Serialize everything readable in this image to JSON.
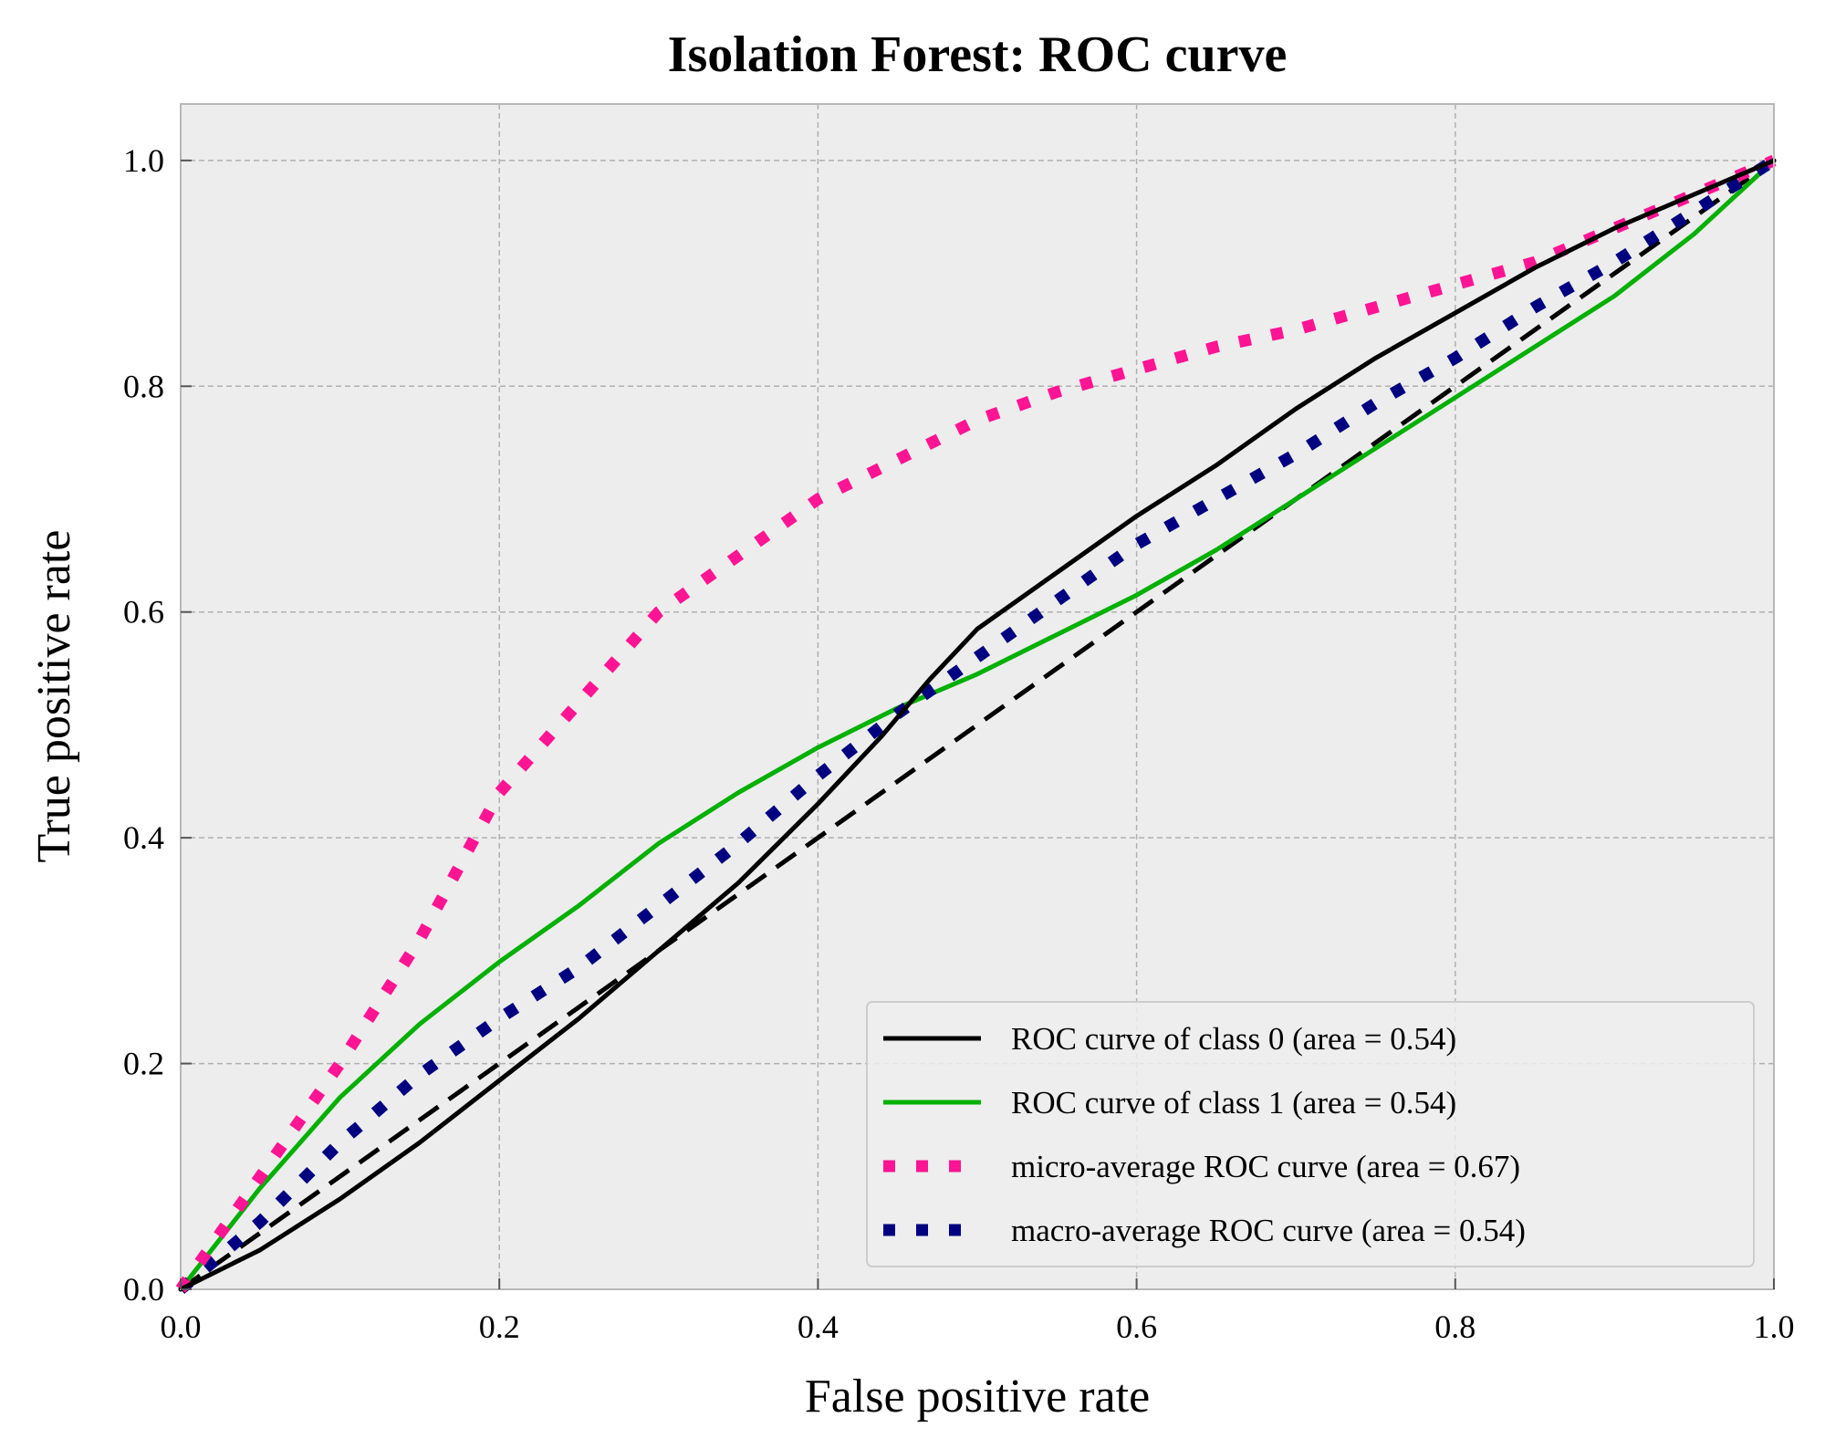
{
  "chart_data": {
    "type": "line",
    "title": "Isolation Forest: ROC curve",
    "xlabel": "False positive rate",
    "ylabel": "True positive rate",
    "xlim": [
      0.0,
      1.0
    ],
    "ylim": [
      0.0,
      1.05
    ],
    "xticks": [
      "0.0",
      "0.2",
      "0.4",
      "0.6",
      "0.8",
      "1.0"
    ],
    "yticks": [
      "0.0",
      "0.2",
      "0.4",
      "0.6",
      "0.8",
      "1.0"
    ],
    "grid": true,
    "legend_position": "lower right",
    "background": "#ededed",
    "series": [
      {
        "name": "ROC curve of class 0 (area = 0.54)",
        "color": "#000000",
        "style": "solid",
        "points": [
          [
            0,
            0
          ],
          [
            0.05,
            0.035
          ],
          [
            0.1,
            0.08
          ],
          [
            0.15,
            0.13
          ],
          [
            0.2,
            0.185
          ],
          [
            0.25,
            0.24
          ],
          [
            0.3,
            0.3
          ],
          [
            0.35,
            0.36
          ],
          [
            0.4,
            0.43
          ],
          [
            0.44,
            0.49
          ],
          [
            0.47,
            0.54
          ],
          [
            0.5,
            0.585
          ],
          [
            0.55,
            0.635
          ],
          [
            0.6,
            0.685
          ],
          [
            0.65,
            0.73
          ],
          [
            0.7,
            0.78
          ],
          [
            0.75,
            0.825
          ],
          [
            0.8,
            0.865
          ],
          [
            0.85,
            0.905
          ],
          [
            0.9,
            0.94
          ],
          [
            0.95,
            0.97
          ],
          [
            1.0,
            1.0
          ]
        ]
      },
      {
        "name": "ROC curve of class 1 (area = 0.54)",
        "color": "#00b000",
        "style": "solid",
        "points": [
          [
            0,
            0
          ],
          [
            0.05,
            0.09
          ],
          [
            0.1,
            0.17
          ],
          [
            0.15,
            0.235
          ],
          [
            0.2,
            0.29
          ],
          [
            0.25,
            0.34
          ],
          [
            0.3,
            0.395
          ],
          [
            0.35,
            0.44
          ],
          [
            0.4,
            0.48
          ],
          [
            0.45,
            0.515
          ],
          [
            0.5,
            0.545
          ],
          [
            0.55,
            0.58
          ],
          [
            0.6,
            0.615
          ],
          [
            0.65,
            0.655
          ],
          [
            0.7,
            0.7
          ],
          [
            0.75,
            0.745
          ],
          [
            0.8,
            0.79
          ],
          [
            0.85,
            0.835
          ],
          [
            0.9,
            0.88
          ],
          [
            0.95,
            0.935
          ],
          [
            1.0,
            1.0
          ]
        ]
      },
      {
        "name": "micro-average ROC curve (area = 0.67)",
        "color": "#ff1493",
        "style": "dotted",
        "points": [
          [
            0,
            0
          ],
          [
            0.05,
            0.1
          ],
          [
            0.1,
            0.2
          ],
          [
            0.15,
            0.31
          ],
          [
            0.2,
            0.44
          ],
          [
            0.25,
            0.52
          ],
          [
            0.3,
            0.6
          ],
          [
            0.35,
            0.65
          ],
          [
            0.4,
            0.7
          ],
          [
            0.45,
            0.735
          ],
          [
            0.5,
            0.77
          ],
          [
            0.55,
            0.795
          ],
          [
            0.6,
            0.815
          ],
          [
            0.65,
            0.835
          ],
          [
            0.7,
            0.85
          ],
          [
            0.75,
            0.87
          ],
          [
            0.8,
            0.89
          ],
          [
            0.85,
            0.91
          ],
          [
            0.9,
            0.94
          ],
          [
            0.95,
            0.97
          ],
          [
            1.0,
            1.0
          ]
        ]
      },
      {
        "name": "macro-average ROC curve (area = 0.54)",
        "color": "#000080",
        "style": "dotted",
        "points": [
          [
            0,
            0
          ],
          [
            0.05,
            0.06
          ],
          [
            0.1,
            0.13
          ],
          [
            0.15,
            0.19
          ],
          [
            0.2,
            0.24
          ],
          [
            0.25,
            0.285
          ],
          [
            0.3,
            0.34
          ],
          [
            0.35,
            0.395
          ],
          [
            0.4,
            0.455
          ],
          [
            0.45,
            0.51
          ],
          [
            0.5,
            0.56
          ],
          [
            0.55,
            0.61
          ],
          [
            0.6,
            0.66
          ],
          [
            0.65,
            0.7
          ],
          [
            0.7,
            0.74
          ],
          [
            0.75,
            0.785
          ],
          [
            0.8,
            0.825
          ],
          [
            0.85,
            0.87
          ],
          [
            0.9,
            0.91
          ],
          [
            0.95,
            0.955
          ],
          [
            1.0,
            1.0
          ]
        ]
      },
      {
        "name": "",
        "color": "#000000",
        "style": "dashed",
        "points": [
          [
            0,
            0
          ],
          [
            1,
            1
          ]
        ]
      }
    ]
  }
}
